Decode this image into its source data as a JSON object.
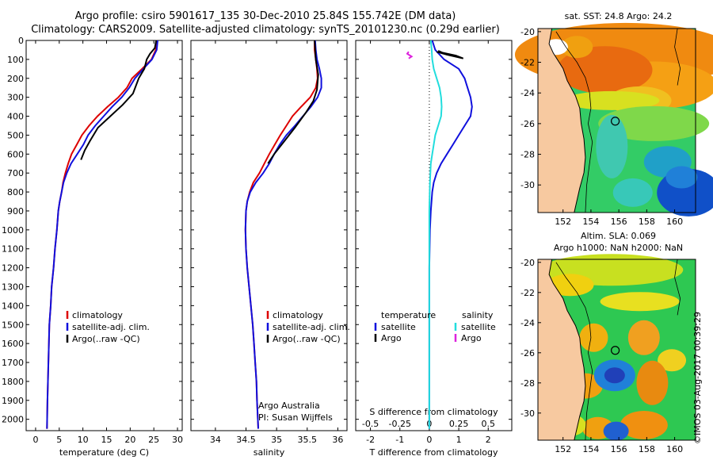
{
  "title_line1": "Argo profile: csiro 5901617_135 30-Dec-2010 25.84S 155.742E (DM data)",
  "title_line2": "Climatology: CARS2009. Satellite-adjusted climatology: synTS_20101230.nc (0.29d earlier)",
  "credit": "©IMOS 03-Aug-2017 00:39:29",
  "colors": {
    "clim": "#dd0000",
    "sat": "#1010dd",
    "argo": "#000000",
    "cyan": "#22dddd",
    "magenta": "#dd22dd",
    "land": "#f7c9a0"
  },
  "chart_data": [
    {
      "id": "temp",
      "type": "line",
      "xlabel": "temperature (deg C)",
      "ylabel": "",
      "xlim": [
        -2,
        31
      ],
      "ylim": [
        2060,
        0
      ],
      "xticks": [
        0,
        5,
        10,
        15,
        20,
        25,
        30
      ],
      "xtick_labels": [
        "0",
        "5",
        "10",
        "15",
        "20",
        "25",
        "30"
      ],
      "yticks": [
        0,
        100,
        200,
        300,
        400,
        500,
        600,
        700,
        800,
        900,
        1000,
        1100,
        1200,
        1300,
        1400,
        1500,
        1600,
        1700,
        1800,
        1900,
        2000
      ],
      "ytick_labels": [
        "0",
        "100",
        "200",
        "300",
        "400",
        "500",
        "600",
        "700",
        "800",
        "900",
        "1000",
        "1100",
        "1200",
        "1300",
        "1400",
        "1500",
        "1600",
        "1700",
        "1800",
        "1900",
        "2000"
      ],
      "legend": [
        "climatology",
        "satellite-adj. clim.",
        "Argo(..raw -QC)"
      ],
      "series": [
        {
          "name": "climatology",
          "color": "#dd0000",
          "x": [
            25.7,
            25.4,
            24.5,
            22.5,
            20.4,
            19.3,
            17.5,
            15.2,
            13.1,
            11.3,
            9.8,
            8.7,
            7.6,
            6.9,
            6.3,
            5.8,
            5.5,
            5.1,
            4.8,
            4.5,
            4.1,
            3.8,
            3.4,
            3.2,
            2.9,
            2.8,
            2.7,
            2.6,
            2.5,
            2.4
          ],
          "y": [
            0,
            50,
            100,
            150,
            200,
            250,
            300,
            350,
            400,
            450,
            500,
            550,
            600,
            650,
            700,
            750,
            800,
            850,
            900,
            1000,
            1100,
            1200,
            1300,
            1400,
            1500,
            1600,
            1700,
            1800,
            1900,
            2050
          ]
        },
        {
          "name": "satellite-adj. clim.",
          "color": "#1010dd",
          "x": [
            25.8,
            25.6,
            24.6,
            22.8,
            21.0,
            19.8,
            18.2,
            16.2,
            14.4,
            12.6,
            11.1,
            10.1,
            8.8,
            7.5,
            6.6,
            5.9,
            5.5,
            5.1,
            4.8,
            4.5,
            4.1,
            3.8,
            3.4,
            3.2,
            2.9,
            2.8,
            2.7,
            2.6,
            2.5,
            2.4
          ],
          "y": [
            0,
            50,
            100,
            150,
            200,
            250,
            300,
            350,
            400,
            450,
            500,
            550,
            600,
            650,
            700,
            750,
            800,
            850,
            900,
            1000,
            1100,
            1200,
            1300,
            1400,
            1500,
            1600,
            1700,
            1800,
            1900,
            2050
          ]
        },
        {
          "name": "Argo",
          "color": "#000000",
          "x": [
            25.5,
            25.2,
            24.2,
            23.5,
            23.0,
            21.8,
            20.6,
            18.4,
            15.8,
            13.2,
            11.5,
            10.4,
            9.6
          ],
          "y": [
            0,
            40,
            70,
            100,
            150,
            200,
            280,
            340,
            400,
            460,
            530,
            580,
            630
          ]
        }
      ]
    },
    {
      "id": "sal",
      "type": "line",
      "xlabel": "salinity",
      "ylabel": "",
      "xlim": [
        33.6,
        36.15
      ],
      "ylim": [
        2060,
        0
      ],
      "xticks": [
        34,
        34.5,
        35,
        35.5,
        36
      ],
      "xtick_labels": [
        "34",
        "34.5",
        "35",
        "35.5",
        "36"
      ],
      "legend": [
        "climatology",
        "satellite-adj. clim.",
        "Argo(..raw -QC)"
      ],
      "annotation": [
        "Argo Australia",
        "PI: Susan Wijffels"
      ],
      "series": [
        {
          "name": "climatology",
          "color": "#dd0000",
          "x": [
            35.62,
            35.62,
            35.64,
            35.66,
            35.67,
            35.64,
            35.55,
            35.4,
            35.26,
            35.16,
            35.06,
            34.97,
            34.88,
            34.8,
            34.72,
            34.62,
            34.56,
            34.52,
            34.5,
            34.49,
            34.5,
            34.52,
            34.55,
            34.58,
            34.61,
            34.63,
            34.65,
            34.67,
            34.68,
            34.7
          ],
          "y": [
            0,
            50,
            100,
            150,
            200,
            250,
            300,
            350,
            400,
            450,
            500,
            550,
            600,
            650,
            700,
            750,
            800,
            850,
            900,
            1000,
            1100,
            1200,
            1300,
            1400,
            1500,
            1600,
            1700,
            1800,
            1900,
            2050
          ]
        },
        {
          "name": "satellite-adj. clim.",
          "color": "#1010dd",
          "x": [
            35.63,
            35.64,
            35.66,
            35.7,
            35.73,
            35.73,
            35.67,
            35.56,
            35.43,
            35.3,
            35.16,
            35.05,
            34.96,
            34.88,
            34.78,
            34.66,
            34.57,
            34.52,
            34.5,
            34.49,
            34.5,
            34.52,
            34.55,
            34.58,
            34.61,
            34.63,
            34.65,
            34.67,
            34.68,
            34.7
          ],
          "y": [
            0,
            50,
            100,
            150,
            200,
            250,
            300,
            350,
            400,
            450,
            500,
            550,
            600,
            650,
            700,
            750,
            800,
            850,
            900,
            1000,
            1100,
            1200,
            1300,
            1400,
            1500,
            1600,
            1700,
            1800,
            1900,
            2050
          ]
        },
        {
          "name": "Argo",
          "color": "#000000",
          "x": [
            35.62,
            35.64,
            35.68,
            35.66,
            35.6,
            35.48,
            35.3,
            35.13,
            34.96,
            34.86
          ],
          "y": [
            0,
            100,
            180,
            260,
            320,
            380,
            460,
            530,
            600,
            650
          ]
        }
      ]
    },
    {
      "id": "diff",
      "type": "line",
      "xlabel": "T difference from climatology",
      "xlabel_top": "S difference from climatology",
      "xlim": [
        -2.5,
        2.8
      ],
      "ylim": [
        2060,
        0
      ],
      "xticks": [
        -2,
        -1,
        0,
        1,
        2
      ],
      "xtick_labels": [
        "-2",
        "-1",
        "0",
        "1",
        "2"
      ],
      "sticks": [
        -2,
        -1,
        0,
        1,
        2
      ],
      "stick_labels": [
        "-0.5",
        "-0.25",
        "0",
        "0.25",
        "0.5"
      ],
      "legend_temperature": {
        "heading": "temperature",
        "entries": [
          "satellite",
          "Argo"
        ]
      },
      "legend_salinity": {
        "heading": "salinity",
        "entries": [
          "satellite",
          "Argo"
        ]
      },
      "series": [
        {
          "name": "T satellite",
          "color": "#1010dd",
          "x": [
            0.1,
            0.2,
            0.5,
            1.0,
            1.2,
            1.3,
            1.4,
            1.45,
            1.4,
            1.2,
            1.0,
            0.8,
            0.6,
            0.4,
            0.25,
            0.15,
            0.1,
            0.05,
            0.02,
            0,
            0,
            0
          ],
          "y": [
            0,
            50,
            100,
            150,
            200,
            250,
            300,
            350,
            400,
            450,
            500,
            550,
            600,
            650,
            700,
            750,
            800,
            900,
            1000,
            1200,
            1600,
            2050
          ]
        },
        {
          "name": "S satellite",
          "color": "#22dddd",
          "x": [
            0.05,
            0.08,
            0.1,
            0.15,
            0.25,
            0.35,
            0.4,
            0.42,
            0.4,
            0.3,
            0.2,
            0.15,
            0.1,
            0.05,
            0.02,
            0,
            0,
            0,
            0
          ],
          "y": [
            0,
            50,
            100,
            150,
            200,
            250,
            300,
            350,
            400,
            450,
            500,
            550,
            600,
            650,
            750,
            900,
            1100,
            1500,
            2050
          ]
        },
        {
          "name": "T Argo",
          "color": "#000000",
          "x": [
            0.3,
            0.45,
            0.9,
            1.15,
            0.6,
            0.25
          ],
          "y": [
            55,
            65,
            80,
            95,
            75,
            60
          ]
        },
        {
          "name": "S Argo",
          "color": "#dd22dd",
          "x": [
            -0.7,
            -0.75,
            -0.6,
            -0.7
          ],
          "y": [
            60,
            70,
            85,
            95
          ]
        }
      ]
    }
  ],
  "maps": [
    {
      "id": "sst",
      "title": "sat. SST: 24.8 Argo: 24.2",
      "xticks": [
        152,
        154,
        156,
        158,
        160
      ],
      "xtick_labels": [
        "152",
        "154",
        "156",
        "158",
        "160"
      ],
      "yticks": [
        -20,
        -22,
        -24,
        -26,
        -28,
        -30
      ],
      "ytick_labels": [
        "-20",
        "-22",
        "-24",
        "-26",
        "-28",
        "-30"
      ],
      "xlim": [
        150.2,
        161.5
      ],
      "ylim": [
        -31.8,
        -19.8
      ],
      "argo_position": [
        155.742,
        -25.84
      ]
    },
    {
      "id": "sla",
      "title1": "Altim. SLA: 0.069",
      "title2": "Argo h1000: NaN h2000: NaN",
      "xticks": [
        152,
        154,
        156,
        158,
        160
      ],
      "xtick_labels": [
        "152",
        "154",
        "156",
        "158",
        "160"
      ],
      "yticks": [
        -20,
        -22,
        -24,
        -26,
        -28,
        -30
      ],
      "ytick_labels": [
        "-20",
        "-22",
        "-24",
        "-26",
        "-28",
        "-30"
      ],
      "xlim": [
        150.2,
        161.5
      ],
      "ylim": [
        -31.8,
        -19.8
      ],
      "argo_position": [
        155.742,
        -25.84
      ]
    }
  ]
}
